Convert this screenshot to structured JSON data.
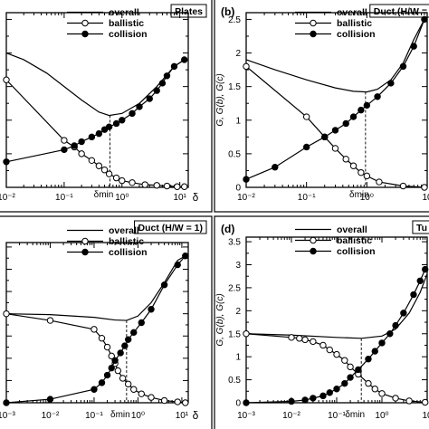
{
  "chart_data": [
    {
      "type": "line",
      "panel_label": "",
      "title": "Plates",
      "xlabel": "δ",
      "ylabel": "",
      "xscale": "log",
      "xlim": [
        0.01,
        14
      ],
      "ylim": [
        0,
        2.6
      ],
      "tick_labels_x": [
        {
          "x": 0.01,
          "label": "10⁻²"
        },
        {
          "x": 0.1,
          "label": "10⁻¹"
        },
        {
          "x": 1,
          "label": "10⁰"
        },
        {
          "x": 10,
          "label": "10¹"
        }
      ],
      "annotations": [
        {
          "text": "δmin",
          "x": 0.62
        }
      ],
      "grid": false,
      "legend_position": "top-center",
      "series": [
        {
          "name": "overall",
          "marker": "none",
          "points": [
            [
              0.01,
              2.0
            ],
            [
              0.02,
              1.9
            ],
            [
              0.05,
              1.7
            ],
            [
              0.1,
              1.5
            ],
            [
              0.2,
              1.3
            ],
            [
              0.4,
              1.12
            ],
            [
              0.6,
              1.07
            ],
            [
              1.0,
              1.1
            ],
            [
              2.0,
              1.25
            ],
            [
              4.0,
              1.5
            ],
            [
              8.0,
              1.8
            ],
            [
              12.0,
              1.9
            ]
          ]
        },
        {
          "name": "ballistic",
          "marker": "open-circle",
          "points": [
            [
              0.01,
              1.6
            ],
            [
              0.1,
              0.7
            ],
            [
              0.15,
              0.6
            ],
            [
              0.2,
              0.5
            ],
            [
              0.3,
              0.4
            ],
            [
              0.4,
              0.32
            ],
            [
              0.5,
              0.26
            ],
            [
              0.6,
              0.2
            ],
            [
              0.8,
              0.14
            ],
            [
              1.0,
              0.1
            ],
            [
              1.5,
              0.07
            ],
            [
              2.5,
              0.04
            ],
            [
              4.0,
              0.03
            ],
            [
              6.0,
              0.02
            ],
            [
              9.0,
              0.01
            ],
            [
              12.0,
              0.01
            ]
          ]
        },
        {
          "name": "collision",
          "marker": "filled-circle",
          "points": [
            [
              0.01,
              0.38
            ],
            [
              0.1,
              0.56
            ],
            [
              0.15,
              0.62
            ],
            [
              0.2,
              0.68
            ],
            [
              0.3,
              0.75
            ],
            [
              0.4,
              0.8
            ],
            [
              0.5,
              0.86
            ],
            [
              0.6,
              0.9
            ],
            [
              0.8,
              0.95
            ],
            [
              1.0,
              1.0
            ],
            [
              1.5,
              1.1
            ],
            [
              2.0,
              1.2
            ],
            [
              3.0,
              1.32
            ],
            [
              4.0,
              1.44
            ],
            [
              5.0,
              1.55
            ],
            [
              6.0,
              1.66
            ],
            [
              8.0,
              1.8
            ],
            [
              12.0,
              1.9
            ]
          ]
        }
      ]
    },
    {
      "type": "line",
      "panel_label": "(b)",
      "title": "Duct (H/W =",
      "xlabel": "",
      "ylabel": "G, G(b), G(c)",
      "xscale": "log",
      "xlim": [
        0.01,
        10
      ],
      "ylim": [
        0,
        2.6
      ],
      "tick_labels_x": [
        {
          "x": 0.01,
          "label": "10⁻²"
        },
        {
          "x": 0.1,
          "label": "10⁻¹"
        },
        {
          "x": 1,
          "label": "10⁰"
        },
        {
          "x": 10,
          "label": "10"
        }
      ],
      "tick_labels_y": [
        "0",
        "0.5",
        "1",
        "1.5",
        "2",
        "2.5"
      ],
      "annotations": [
        {
          "text": "δmin",
          "x": 0.95
        }
      ],
      "grid": false,
      "legend_position": "top-center",
      "series": [
        {
          "name": "overall",
          "marker": "none",
          "points": [
            [
              0.01,
              1.9
            ],
            [
              0.03,
              1.75
            ],
            [
              0.1,
              1.6
            ],
            [
              0.3,
              1.48
            ],
            [
              0.6,
              1.43
            ],
            [
              1.0,
              1.42
            ],
            [
              1.5,
              1.46
            ],
            [
              2.5,
              1.6
            ],
            [
              4.0,
              1.85
            ],
            [
              6.0,
              2.2
            ],
            [
              9.0,
              2.5
            ]
          ]
        },
        {
          "name": "ballistic",
          "marker": "open-circle",
          "points": [
            [
              0.01,
              1.8
            ],
            [
              0.1,
              1.05
            ],
            [
              0.2,
              0.75
            ],
            [
              0.3,
              0.58
            ],
            [
              0.45,
              0.42
            ],
            [
              0.6,
              0.32
            ],
            [
              0.8,
              0.22
            ],
            [
              1.0,
              0.17
            ],
            [
              1.6,
              0.08
            ],
            [
              4.0,
              0.02
            ],
            [
              9.0,
              0.0
            ]
          ]
        },
        {
          "name": "collision",
          "marker": "filled-circle",
          "points": [
            [
              0.01,
              0.12
            ],
            [
              0.03,
              0.3
            ],
            [
              0.1,
              0.6
            ],
            [
              0.2,
              0.75
            ],
            [
              0.3,
              0.85
            ],
            [
              0.45,
              0.95
            ],
            [
              0.6,
              1.05
            ],
            [
              0.8,
              1.15
            ],
            [
              1.0,
              1.22
            ],
            [
              1.5,
              1.35
            ],
            [
              2.5,
              1.55
            ],
            [
              4.0,
              1.8
            ],
            [
              6.0,
              2.1
            ],
            [
              9.0,
              2.5
            ]
          ]
        }
      ]
    },
    {
      "type": "line",
      "panel_label": "",
      "title": "Duct (H/W = 1)",
      "xlabel": "δ",
      "ylabel": "",
      "xscale": "log",
      "xlim": [
        0.001,
        14
      ],
      "ylim": [
        0,
        3.6
      ],
      "tick_labels_x": [
        {
          "x": 0.001,
          "label": "10⁻³"
        },
        {
          "x": 0.01,
          "label": "10⁻²"
        },
        {
          "x": 0.1,
          "label": "10⁻¹"
        },
        {
          "x": 1,
          "label": "10⁰"
        },
        {
          "x": 10,
          "label": "10¹"
        }
      ],
      "annotations": [
        {
          "text": "δmin",
          "x": 0.55
        }
      ],
      "grid": false,
      "legend_position": "top-center",
      "series": [
        {
          "name": "overall",
          "marker": "none",
          "points": [
            [
              0.001,
              2.0
            ],
            [
              0.01,
              1.98
            ],
            [
              0.1,
              1.92
            ],
            [
              0.3,
              1.86
            ],
            [
              0.55,
              1.85
            ],
            [
              1.0,
              1.95
            ],
            [
              2.0,
              2.25
            ],
            [
              4.0,
              2.7
            ],
            [
              8.0,
              3.2
            ],
            [
              12.0,
              3.3
            ]
          ]
        },
        {
          "name": "ballistic",
          "marker": "open-circle",
          "points": [
            [
              0.001,
              2.0
            ],
            [
              0.01,
              1.85
            ],
            [
              0.1,
              1.65
            ],
            [
              0.15,
              1.45
            ],
            [
              0.2,
              1.25
            ],
            [
              0.25,
              1.05
            ],
            [
              0.3,
              0.88
            ],
            [
              0.35,
              0.72
            ],
            [
              0.45,
              0.55
            ],
            [
              0.6,
              0.42
            ],
            [
              0.8,
              0.3
            ],
            [
              1.2,
              0.2
            ],
            [
              2.0,
              0.12
            ],
            [
              4.0,
              0.05
            ],
            [
              8.0,
              0.02
            ],
            [
              12.0,
              0.0
            ]
          ]
        },
        {
          "name": "collision",
          "marker": "filled-circle",
          "points": [
            [
              0.001,
              0.0
            ],
            [
              0.01,
              0.08
            ],
            [
              0.1,
              0.3
            ],
            [
              0.15,
              0.45
            ],
            [
              0.2,
              0.62
            ],
            [
              0.25,
              0.78
            ],
            [
              0.3,
              0.95
            ],
            [
              0.4,
              1.12
            ],
            [
              0.5,
              1.28
            ],
            [
              0.6,
              1.42
            ],
            [
              0.8,
              1.58
            ],
            [
              1.2,
              1.8
            ],
            [
              2.0,
              2.1
            ],
            [
              4.0,
              2.65
            ],
            [
              8.0,
              3.1
            ],
            [
              12.0,
              3.3
            ]
          ]
        }
      ]
    },
    {
      "type": "line",
      "panel_label": "(d)",
      "title": "Tu",
      "xlabel": "",
      "ylabel": "G, G(b), G(c)",
      "xscale": "log",
      "xlim": [
        0.001,
        10
      ],
      "ylim": [
        0,
        3.6
      ],
      "tick_labels_x": [
        {
          "x": 0.001,
          "label": "10⁻³"
        },
        {
          "x": 0.01,
          "label": "10⁻²"
        },
        {
          "x": 0.1,
          "label": "10⁻¹"
        },
        {
          "x": 1,
          "label": "10⁰"
        },
        {
          "x": 10,
          "label": "10"
        }
      ],
      "tick_labels_y": [
        "0",
        "0.5",
        "1",
        "1.5",
        "2",
        "2.5",
        "3",
        "3.5"
      ],
      "annotations": [
        {
          "text": "δmin",
          "x": 0.35
        }
      ],
      "grid": false,
      "legend_position": "top-center",
      "series": [
        {
          "name": "overall",
          "marker": "none",
          "points": [
            [
              0.001,
              1.5
            ],
            [
              0.01,
              1.47
            ],
            [
              0.1,
              1.42
            ],
            [
              0.35,
              1.4
            ],
            [
              1.0,
              1.45
            ],
            [
              2.0,
              1.6
            ],
            [
              4.0,
              1.95
            ],
            [
              7.0,
              2.4
            ],
            [
              10.0,
              2.8
            ]
          ]
        },
        {
          "name": "ballistic",
          "marker": "open-circle",
          "points": [
            [
              0.001,
              1.5
            ],
            [
              0.01,
              1.42
            ],
            [
              0.015,
              1.4
            ],
            [
              0.02,
              1.37
            ],
            [
              0.03,
              1.33
            ],
            [
              0.05,
              1.25
            ],
            [
              0.07,
              1.15
            ],
            [
              0.1,
              1.05
            ],
            [
              0.15,
              0.92
            ],
            [
              0.2,
              0.78
            ],
            [
              0.3,
              0.62
            ],
            [
              0.5,
              0.42
            ],
            [
              0.7,
              0.3
            ],
            [
              1.0,
              0.2
            ],
            [
              2.0,
              0.1
            ],
            [
              4.0,
              0.04
            ],
            [
              9.0,
              0.01
            ]
          ]
        },
        {
          "name": "collision",
          "marker": "filled-circle",
          "points": [
            [
              0.001,
              0.0
            ],
            [
              0.01,
              0.03
            ],
            [
              0.02,
              0.06
            ],
            [
              0.03,
              0.1
            ],
            [
              0.05,
              0.15
            ],
            [
              0.07,
              0.22
            ],
            [
              0.1,
              0.3
            ],
            [
              0.15,
              0.42
            ],
            [
              0.2,
              0.55
            ],
            [
              0.3,
              0.72
            ],
            [
              0.5,
              0.95
            ],
            [
              0.7,
              1.12
            ],
            [
              1.0,
              1.3
            ],
            [
              1.5,
              1.5
            ],
            [
              2.0,
              1.68
            ],
            [
              3.0,
              1.95
            ],
            [
              5.0,
              2.35
            ],
            [
              7.0,
              2.65
            ],
            [
              9.0,
              2.9
            ]
          ]
        }
      ]
    }
  ]
}
